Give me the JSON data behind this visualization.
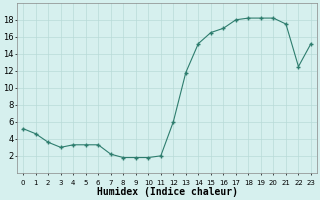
{
  "x": [
    0,
    1,
    2,
    3,
    4,
    5,
    6,
    7,
    8,
    9,
    10,
    11,
    12,
    13,
    14,
    15,
    16,
    17,
    18,
    19,
    20,
    21,
    22,
    23
  ],
  "y": [
    5.2,
    4.6,
    3.6,
    3.0,
    3.3,
    3.3,
    3.3,
    2.2,
    1.8,
    1.8,
    1.8,
    2.0,
    6.0,
    11.8,
    15.2,
    16.5,
    17.0,
    18.0,
    18.2,
    18.2,
    18.2,
    17.5,
    12.5,
    15.2
  ],
  "line_color": "#2e7d6e",
  "marker_color": "#2e7d6e",
  "bg_color": "#d6f0ee",
  "grid_color": "#b8dbd8",
  "xlabel": "Humidex (Indice chaleur)",
  "ylim": [
    0,
    20
  ],
  "xlim": [
    -0.5,
    23.5
  ],
  "yticks": [
    2,
    4,
    6,
    8,
    10,
    12,
    14,
    16,
    18
  ],
  "xtick_labels": [
    "0",
    "1",
    "2",
    "3",
    "4",
    "5",
    "6",
    "7",
    "8",
    "9",
    "10",
    "11",
    "12",
    "13",
    "14",
    "15",
    "16",
    "17",
    "18",
    "19",
    "20",
    "21",
    "22",
    "23"
  ],
  "label_fontsize": 7,
  "tick_fontsize": 6
}
